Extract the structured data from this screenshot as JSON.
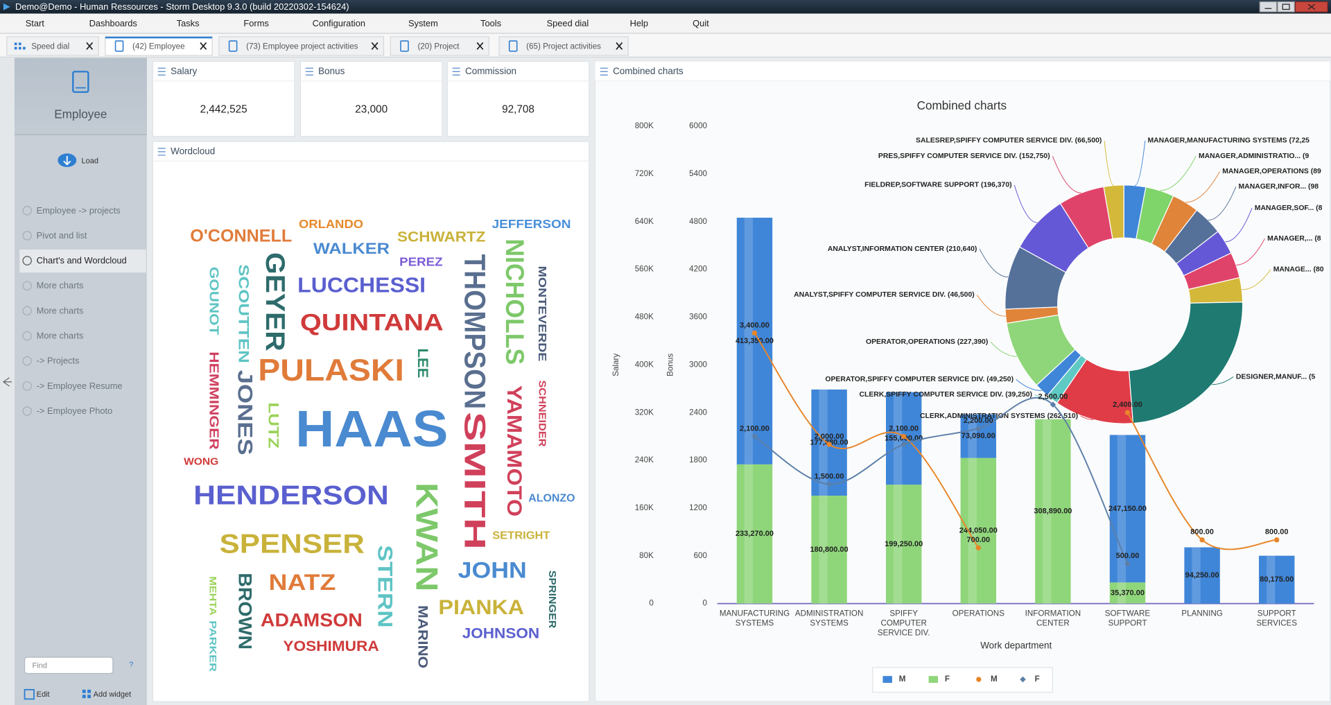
{
  "window": {
    "title": "Demo@Demo - Human Ressources - Storm Desktop 9.3.0 (build 20220302-154624)"
  },
  "menu": [
    "Start",
    "Dashboards",
    "Tasks",
    "Forms",
    "Configuration",
    "System",
    "Tools",
    "Speed dial",
    "Help",
    "Quit"
  ],
  "tabs": [
    "Speed dial",
    "(42) Employee",
    "(73) Employee project activities",
    "(20) Project",
    "(65) Project activities"
  ],
  "sidebar": {
    "title": "Employee",
    "load": "Load",
    "items": [
      "Employee -> projects",
      "Pivot and list",
      "Chart's and Wordcloud",
      "More charts",
      "More charts",
      "More charts",
      "-> Projects",
      "-> Employee Resume",
      "-> Employee Photo"
    ],
    "search_placeholder": "Find",
    "help": "?",
    "edit": "Edit",
    "add_widget": "Add widget"
  },
  "kpis": [
    {
      "title": "Salary",
      "value": "2,442,525"
    },
    {
      "title": "Bonus",
      "value": "23,000"
    },
    {
      "title": "Commission",
      "value": "92,708"
    }
  ],
  "wordcloud": {
    "title": "Wordcloud",
    "words": [
      {
        "text": "O'CONNELL",
        "color": "#e07b39"
      },
      {
        "text": "ORLANDO",
        "color": "#e68a2e"
      },
      {
        "text": "SCHWARTZ",
        "color": "#c9b23a"
      },
      {
        "text": "JEFFERSON",
        "color": "#4a90d9"
      },
      {
        "text": "WALKER",
        "color": "#4a8ad0"
      },
      {
        "text": "PEREZ",
        "color": "#7b5cd6"
      },
      {
        "text": "GEYER",
        "color": "#2e6b6b"
      },
      {
        "text": "SCOUTTEN",
        "color": "#5fc4c4"
      },
      {
        "text": "GOUNOT",
        "color": "#5fc4c4"
      },
      {
        "text": "LUCCHESSI",
        "color": "#5a5fcf"
      },
      {
        "text": "THOMPSON",
        "color": "#5a6f8f"
      },
      {
        "text": "SMITH",
        "color": "#d0405a"
      },
      {
        "text": "NICHOLLS",
        "color": "#7dc86a"
      },
      {
        "text": "MONTEVERDE",
        "color": "#4a5a7a"
      },
      {
        "text": "QUINTANA",
        "color": "#d03a3a"
      },
      {
        "text": "LEE",
        "color": "#2e8b6e"
      },
      {
        "text": "HEMMINGER",
        "color": "#d04060"
      },
      {
        "text": "JONES",
        "color": "#5a6f8f"
      },
      {
        "text": "PULASKI",
        "color": "#e07b39"
      },
      {
        "text": "LUTZ",
        "color": "#9bd35a"
      },
      {
        "text": "HAAS",
        "color": "#4a8ad0"
      },
      {
        "text": "YAMAMOTO",
        "color": "#d0405a"
      },
      {
        "text": "SCHNEIDER",
        "color": "#d0405a"
      },
      {
        "text": "WONG",
        "color": "#d03a3a"
      },
      {
        "text": "HENDERSON",
        "color": "#5a5fcf"
      },
      {
        "text": "KWAN",
        "color": "#7dc86a"
      },
      {
        "text": "ALONZO",
        "color": "#4a8ad0"
      },
      {
        "text": "SETRIGHT",
        "color": "#c9b23a"
      },
      {
        "text": "SPENSER",
        "color": "#c9b23a"
      },
      {
        "text": "STERN",
        "color": "#5fc4c4"
      },
      {
        "text": "JOHN",
        "color": "#4a8ad0"
      },
      {
        "text": "NATZ",
        "color": "#e07b39"
      },
      {
        "text": "BROWN",
        "color": "#2e6b6b"
      },
      {
        "text": "MEHTA",
        "color": "#9bd35a"
      },
      {
        "text": "PARKER",
        "color": "#5fc4c4"
      },
      {
        "text": "PIANKA",
        "color": "#c9b23a"
      },
      {
        "text": "SPRINGER",
        "color": "#2e6b6b"
      },
      {
        "text": "ADAMSON",
        "color": "#d03a3a"
      },
      {
        "text": "MARINO",
        "color": "#4a5a7a"
      },
      {
        "text": "JOHNSON",
        "color": "#5a5fcf"
      },
      {
        "text": "YOSHIMURA",
        "color": "#d03a3a"
      }
    ]
  },
  "combined_panel": {
    "title": "Combined charts"
  },
  "chart_data": {
    "type": "combo",
    "title": "Combined charts",
    "x_label": "Work department",
    "y_label": "Salary",
    "y2_label": "Bonus",
    "categories": [
      "MANUFACTURING SYSTEMS",
      "ADMINISTRATION SYSTEMS",
      "SPIFFY COMPUTER SERVICE DIV.",
      "OPERATIONS",
      "INFORMATION CENTER",
      "SOFTWARE SUPPORT",
      "PLANNING",
      "SUPPORT SERVICES"
    ],
    "ylim": [
      0,
      800000
    ],
    "yticks": [
      0,
      {
        "value": 80000,
        "label": "80K"
      },
      {
        "value": 160000,
        "label": "160K"
      },
      {
        "value": 240000,
        "label": "240K"
      },
      {
        "value": 320000,
        "label": "320K"
      },
      {
        "value": 400000,
        "label": "400K"
      },
      {
        "value": 480000,
        "label": "480K"
      },
      {
        "value": 560000,
        "label": "560K"
      },
      {
        "value": 640000,
        "label": "640K"
      },
      {
        "value": 720000,
        "label": "720K"
      },
      {
        "value": 800000,
        "label": "800K"
      }
    ],
    "y2lim": [
      0,
      6000
    ],
    "y2ticks": [
      0,
      600,
      1200,
      1800,
      2400,
      3000,
      3600,
      4200,
      4800,
      5400,
      6000
    ],
    "stacked": true,
    "grid": false,
    "legend": "bottom",
    "series": [
      {
        "name": "M",
        "type": "bar",
        "color": "#3f86d8",
        "values": [
          413350,
          177880,
          155000,
          73090,
          null,
          247150,
          94250,
          80175
        ],
        "value_labels": [
          "413,350.00",
          "177,880.00",
          "155,000.00",
          "73,090.00",
          null,
          "247,150.00",
          "94,250.00",
          "80,175.00"
        ]
      },
      {
        "name": "F",
        "type": "bar",
        "color": "#8fd67a",
        "values": [
          233270,
          180800,
          199250,
          244050,
          308890,
          35370,
          null,
          null
        ],
        "value_labels": [
          "233,270.00",
          "180,800.00",
          "199,250.00",
          "244,050.00",
          "308,890.00",
          "35,370.00",
          null,
          null
        ]
      },
      {
        "name": "M",
        "type": "line",
        "axis": "y2",
        "color": "#e8862a",
        "values": [
          3400,
          2000,
          2100,
          700,
          null,
          2400,
          800,
          800
        ],
        "value_labels": [
          "3,400.00",
          "2,000.00",
          "2,100.00",
          "700.00",
          null,
          "2,400.00",
          "800.00",
          "800.00"
        ]
      },
      {
        "name": "F",
        "type": "line",
        "axis": "y2",
        "color": "#5c7fa8",
        "values": [
          2100,
          1500,
          2000,
          2200,
          2500,
          500,
          null,
          null
        ],
        "value_labels": [
          "2,100.00",
          "1,500.00",
          null,
          "2,200.00",
          "2,500.00",
          "500.00",
          null,
          null
        ]
      }
    ],
    "donut": {
      "labels": [
        "MANAGER,MANUFACTURING SYSTEMS (72,25",
        "MANAGER,ADMINISTRATIO... (9",
        "MANAGER,OPERATIONS (89",
        "MANAGER,INFOR... (98",
        "MANAGER,SOF... (8",
        "MANAGER,... (8",
        "MANAGE... (80",
        "DESIGNER,MANUF... (5",
        "CLERK,ADMINISTRATION SYSTEMS (262,510)",
        "CLERK,SPIFFY COMPUTER SERVICE DIV. (39,250)",
        "OPERATOR,SPIFFY COMPUTER SERVICE DIV. (49,250)",
        "OPERATOR,OPERATIONS (227,390)",
        "ANALYST,SPIFFY COMPUTER SERVICE DIV. (46,500)",
        "ANALYST,INFORMATION CENTER (210,640)",
        "FIELDREP,SOFTWARE SUPPORT (196,370)",
        "PRES,SPIFFY COMPUTER SERVICE DIV. (152,750)",
        "SALESREP,SPIFFY COMPUTER SERVICE DIV. (66,500)"
      ],
      "values": [
        72250,
        95000,
        89750,
        98250,
        82500,
        85000,
        80500,
        588115,
        262510,
        39250,
        49250,
        227390,
        46500,
        210640,
        196370,
        152750,
        66500
      ],
      "colors": [
        "#3f86d8",
        "#7fd46a",
        "#e0843a",
        "#55719a",
        "#6558d6",
        "#e0436a",
        "#d4b83a",
        "#1f7a72",
        "#e03c48",
        "#5fc9c4",
        "#3f86d8",
        "#8fd67a",
        "#e0843a",
        "#55719a",
        "#6558d6",
        "#e0436a",
        "#d4b83a"
      ]
    }
  }
}
